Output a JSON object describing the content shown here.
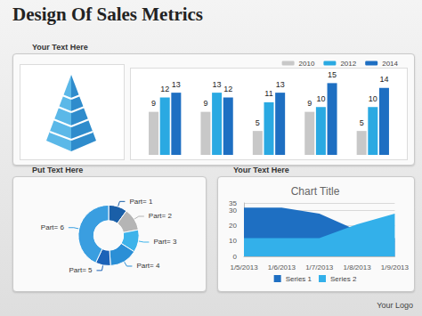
{
  "title": "Design Of Sales Metrics",
  "panels": [
    "Your Text Here",
    "Put Text Here",
    "Your Text Here"
  ],
  "logo": "Your Logo",
  "chart_data": [
    {
      "type": "bar",
      "categories": [
        null,
        null,
        null,
        null,
        null
      ],
      "series": [
        {
          "name": "2010",
          "color": "#c8c8c8",
          "values": [
            9,
            9,
            5,
            9,
            5
          ]
        },
        {
          "name": "2012",
          "color": "#2aa9e2",
          "values": [
            12,
            13,
            11,
            10,
            10
          ]
        },
        {
          "name": "2014",
          "color": "#1e6fc2",
          "values": [
            13,
            12,
            13,
            15,
            14
          ]
        }
      ],
      "ylim": [
        0,
        16
      ],
      "tick_labels": false,
      "data_labels": true,
      "legend": "top-right",
      "grid": false
    },
    {
      "type": "pie",
      "categories": [
        "Part= 1",
        "Part= 2",
        "Part= 3",
        "Part= 4",
        "Part= 5",
        "Part= 6"
      ],
      "values": [
        10,
        12,
        12,
        15,
        8,
        43
      ],
      "colors": [
        "#1a5fa8",
        "#b5b5b5",
        "#3db3ea",
        "#2b8fd6",
        "#1c62b8",
        "#3a9ee0"
      ]
    },
    {
      "type": "area",
      "title": "Chart Title",
      "x": [
        "1/5/2013",
        "1/6/2013",
        "1/7/2013",
        "1/8/2013",
        "1/9/2013"
      ],
      "series": [
        {
          "name": "Series 1",
          "color": "#1e6fc2",
          "values": [
            32,
            32,
            28,
            17,
            12
          ]
        },
        {
          "name": "Series 2",
          "color": "#33b0ea",
          "values": [
            12,
            12,
            12,
            21,
            28
          ]
        }
      ],
      "ylim": [
        0,
        35
      ],
      "yticks": [
        0,
        10,
        20,
        30
      ],
      "grid": true,
      "legend": "bottom"
    }
  ]
}
